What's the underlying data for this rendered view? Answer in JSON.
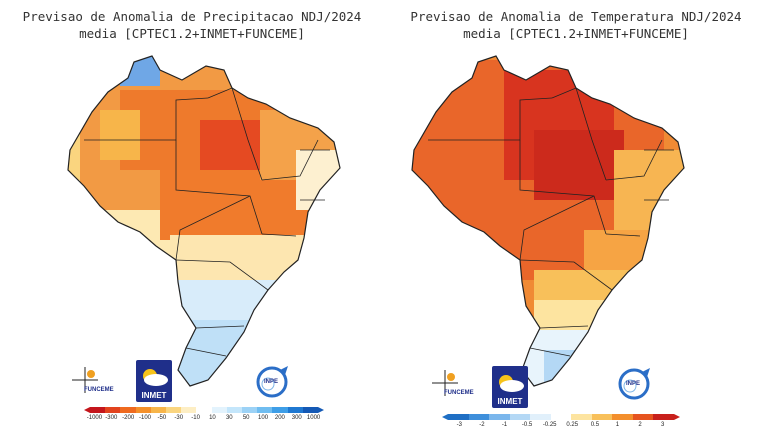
{
  "left": {
    "title_line1": "Previsao de Anomalia de Precipitacao NDJ/2024",
    "title_line2": "media [CPTEC1.2+INMET+FUNCEME]",
    "colorbar": {
      "ticks": [
        "-1000",
        "-300",
        "-200",
        "-100",
        "-50",
        "-30",
        "-10",
        "10",
        "30",
        "50",
        "100",
        "200",
        "300",
        "1000"
      ],
      "colors": [
        "#c4161c",
        "#e2431e",
        "#ef6a1f",
        "#f4902a",
        "#f7b54a",
        "#fad57f",
        "#fdeec4",
        "#ffffff",
        "#e3f3fd",
        "#c4e6fb",
        "#9cd2f6",
        "#70bdf0",
        "#3e9ee7",
        "#1f78d1",
        "#1459b5"
      ]
    },
    "logos": {
      "funceme": "FUNCEME",
      "inmet": "INMET",
      "inpe": "INPE"
    }
  },
  "right": {
    "title_line1": "Previsao de Anomalia de Temperatura NDJ/2024",
    "title_line2": "media [CPTEC1.2+INMET+FUNCEME]",
    "colorbar": {
      "ticks": [
        "-3",
        "-2",
        "-1",
        "-0.5",
        "-0.25",
        "0.25",
        "0.5",
        "1",
        "2",
        "3"
      ],
      "colors": [
        "#1f6fc4",
        "#3e8fdb",
        "#7ab6ec",
        "#b4d8f5",
        "#e1f0fb",
        "#ffffff",
        "#fde4a0",
        "#f8c05a",
        "#f38f2c",
        "#e6541f",
        "#c8201c"
      ]
    },
    "logos": {
      "funceme": "FUNCEME",
      "inmet": "INMET",
      "inpe": "INPE"
    }
  }
}
